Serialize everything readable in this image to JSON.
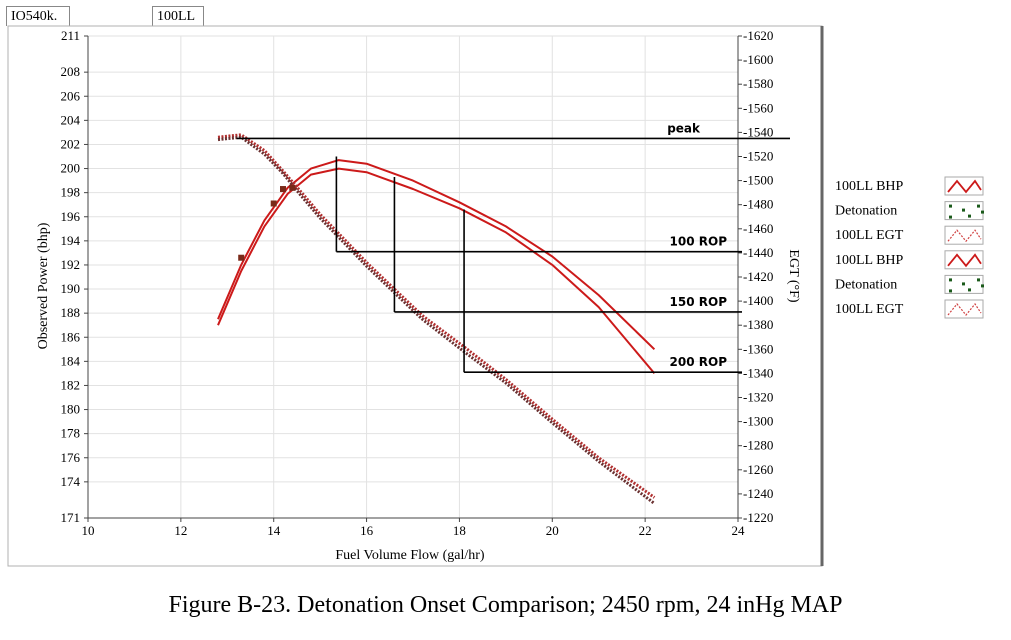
{
  "tabs": [
    "IO540k.",
    "100LL"
  ],
  "caption": "Figure B-23.  Detonation Onset Comparison; 2450 rpm, 24 inHg MAP",
  "chart_data": {
    "type": "line",
    "title": "",
    "xlabel": "Fuel Volume Flow (gal/hr)",
    "ylabel": "Observed Power (bhp)",
    "y2label": "EGT (°F)",
    "xlim": [
      10,
      24
    ],
    "ylim": [
      171,
      211
    ],
    "y2lim": [
      1220,
      1620
    ],
    "x_ticks": [
      10,
      12,
      14,
      16,
      18,
      20,
      22,
      24
    ],
    "y_ticks": [
      171,
      174,
      176,
      178,
      180,
      182,
      184,
      186,
      188,
      190,
      192,
      194,
      196,
      198,
      200,
      202,
      204,
      206,
      208,
      211
    ],
    "y2_ticks": [
      1220,
      1240,
      1260,
      1280,
      1300,
      1320,
      1340,
      1360,
      1380,
      1400,
      1420,
      1440,
      1460,
      1480,
      1500,
      1520,
      1540,
      1560,
      1580,
      1600,
      1620
    ],
    "grid": true,
    "series": [
      {
        "name": "100LL BHP",
        "axis": "left",
        "color": "#cc1a1a",
        "x": [
          12.8,
          13.3,
          13.8,
          14.3,
          14.8,
          15.4,
          16.0,
          17.0,
          18.0,
          19.0,
          20.0,
          21.0,
          22.2
        ],
        "y": [
          187.5,
          192.0,
          195.7,
          198.4,
          200.0,
          200.7,
          200.4,
          199.0,
          197.2,
          195.2,
          192.7,
          189.5,
          185.0
        ]
      },
      {
        "name": "100LL BHP",
        "axis": "left",
        "color": "#cc1a1a",
        "x": [
          12.8,
          13.3,
          13.8,
          14.3,
          14.8,
          15.4,
          16.0,
          17.0,
          18.0,
          19.0,
          20.0,
          21.0,
          22.2
        ],
        "y": [
          187.0,
          191.5,
          195.2,
          197.9,
          199.5,
          200.0,
          199.7,
          198.3,
          196.7,
          194.7,
          192.0,
          188.5,
          183.0
        ]
      },
      {
        "name": "100LL EGT",
        "axis": "right",
        "color": "#b03030",
        "x": [
          12.8,
          13.3,
          13.8,
          14.2,
          14.6,
          15.0,
          15.5,
          16.0,
          16.6,
          17.2,
          18.1,
          19.0,
          20.0,
          21.0,
          22.2
        ],
        "y": [
          1536,
          1538,
          1525,
          1508,
          1490,
          1472,
          1452,
          1432,
          1410,
          1388,
          1362,
          1335,
          1302,
          1270,
          1237
        ]
      },
      {
        "name": "100LL EGT",
        "axis": "right",
        "color": "#6a3030",
        "x": [
          12.8,
          13.3,
          13.8,
          14.2,
          14.6,
          15.0,
          15.5,
          16.0,
          16.6,
          17.2,
          18.1,
          19.0,
          20.0,
          21.0,
          22.2
        ],
        "y": [
          1534,
          1536,
          1522,
          1506,
          1487,
          1469,
          1449,
          1429,
          1407,
          1385,
          1358,
          1332,
          1299,
          1267,
          1232
        ]
      }
    ],
    "detonation_points": [
      {
        "x": 13.3,
        "y": 192.6
      },
      {
        "x": 14.0,
        "y": 197.1
      },
      {
        "x": 14.2,
        "y": 198.3
      },
      {
        "x": 14.4,
        "y": 198.4
      }
    ],
    "legend": {
      "position": "right",
      "entries": [
        {
          "label": "100LL BHP",
          "style": "zigzag",
          "color": "#cc1a1a"
        },
        {
          "label": "Detonation",
          "style": "dots",
          "color": "#1a5a1a"
        },
        {
          "label": "100LL EGT",
          "style": "zigzag-dotted",
          "color": "#d04040"
        },
        {
          "label": "100LL BHP",
          "style": "zigzag",
          "color": "#cc1a1a"
        },
        {
          "label": "Detonation",
          "style": "dots",
          "color": "#1a5a1a"
        },
        {
          "label": "100LL EGT",
          "style": "zigzag-dotted",
          "color": "#d04040"
        }
      ]
    },
    "annotations": [
      {
        "label": "peak",
        "y2": 1535
      },
      {
        "label": "100 ROP",
        "y2": 1441
      },
      {
        "label": "150 ROP",
        "y2": 1391
      },
      {
        "label": "200 ROP",
        "y2": 1341
      }
    ],
    "drop_lines": [
      {
        "x": 15.35,
        "y_top": 201.0,
        "y2_bottom": 1441
      },
      {
        "x": 16.6,
        "y_top": 199.3,
        "y2_bottom": 1391
      },
      {
        "x": 18.1,
        "y_top": 196.6,
        "y2_bottom": 1341
      }
    ]
  }
}
